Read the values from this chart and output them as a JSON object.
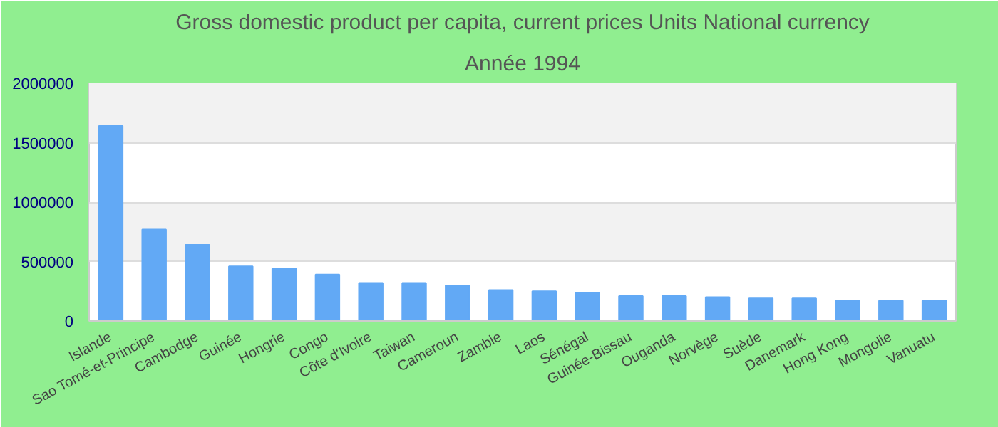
{
  "chart_data": {
    "type": "bar",
    "title": "Gross domestic product per capita, current prices Units National currency",
    "subtitle": "Année 1994",
    "categories": [
      "Islande",
      "Sao Tomé-et-Principe",
      "Cambodge",
      "Guinée",
      "Hongrie",
      "Congo",
      "Côte d'Ivoire",
      "Taiwan",
      "Cameroun",
      "Zambie",
      "Laos",
      "Sénégal",
      "Guinée-Bissau",
      "Ouganda",
      "Norvège",
      "Suède",
      "Danemark",
      "Hong Kong",
      "Mongolie",
      "Vanuatu"
    ],
    "values": [
      1640000,
      770000,
      640000,
      460000,
      440000,
      390000,
      320000,
      320000,
      300000,
      260000,
      250000,
      240000,
      210000,
      210000,
      200000,
      190000,
      190000,
      170000,
      170000,
      170000
    ],
    "color": "#62a9f5",
    "ylim": [
      0,
      2000000
    ],
    "yticks": [
      0,
      500000,
      1000000,
      1500000,
      2000000
    ],
    "grid": "y"
  }
}
